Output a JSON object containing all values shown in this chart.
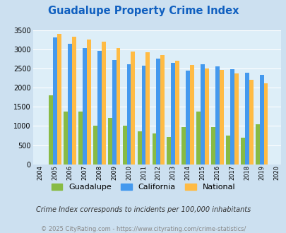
{
  "title": "Guadalupe Property Crime Index",
  "title_color": "#1060c0",
  "years": [
    2004,
    2005,
    2006,
    2007,
    2008,
    2009,
    2010,
    2011,
    2012,
    2013,
    2014,
    2015,
    2016,
    2017,
    2018,
    2019,
    2020
  ],
  "guadalupe": [
    null,
    1800,
    1380,
    1380,
    1000,
    1220,
    1000,
    860,
    810,
    720,
    980,
    1370,
    980,
    750,
    690,
    1050,
    null
  ],
  "california": [
    null,
    3320,
    3150,
    3030,
    2960,
    2720,
    2620,
    2580,
    2760,
    2650,
    2450,
    2620,
    2550,
    2490,
    2400,
    2340,
    null
  ],
  "national": [
    null,
    3400,
    3330,
    3260,
    3200,
    3040,
    2950,
    2920,
    2860,
    2700,
    2590,
    2500,
    2460,
    2370,
    2200,
    2110,
    null
  ],
  "guadalupe_color": "#88bb44",
  "california_color": "#4499ee",
  "national_color": "#ffbb44",
  "bg_color": "#cce0f0",
  "plot_bg_color": "#ddeef8",
  "ylim": [
    0,
    3500
  ],
  "yticks": [
    0,
    500,
    1000,
    1500,
    2000,
    2500,
    3000,
    3500
  ],
  "footnote1": "Crime Index corresponds to incidents per 100,000 inhabitants",
  "footnote2": "© 2025 CityRating.com - https://www.cityrating.com/crime-statistics/",
  "legend_labels": [
    "Guadalupe",
    "California",
    "National"
  ]
}
